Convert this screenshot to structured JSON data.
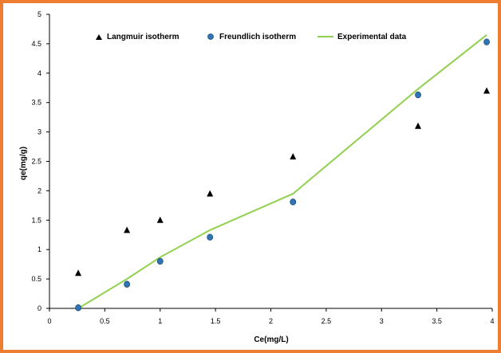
{
  "chart_data": {
    "type": "scatter",
    "title": "",
    "xlabel": "Ce(mg/L)",
    "ylabel": "qe(mg/g)",
    "xlim": [
      0,
      4
    ],
    "ylim": [
      0,
      5
    ],
    "xticks": [
      0,
      0.5,
      1,
      1.5,
      2,
      2.5,
      3,
      3.5,
      4
    ],
    "yticks": [
      0,
      0.5,
      1,
      1.5,
      2,
      2.5,
      3,
      3.5,
      4,
      4.5,
      5
    ],
    "grid": false,
    "legend_position": "top",
    "series": [
      {
        "name": "Langmuir isotherm",
        "kind": "scatter",
        "marker": "triangle",
        "color": "#000000",
        "x": [
          0.26,
          0.7,
          1.0,
          1.45,
          2.2,
          3.33,
          3.95
        ],
        "y": [
          0.6,
          1.33,
          1.5,
          1.95,
          2.58,
          3.1,
          3.7
        ]
      },
      {
        "name": "Freundlich isotherm",
        "kind": "scatter",
        "marker": "circle",
        "color": "#2E75B6",
        "x": [
          0.26,
          0.7,
          1.0,
          1.45,
          2.2,
          3.33,
          3.95
        ],
        "y": [
          0.01,
          0.41,
          0.8,
          1.21,
          1.81,
          3.63,
          4.53
        ]
      },
      {
        "name": "Experimental data",
        "kind": "line",
        "color": "#92D050",
        "x": [
          0.26,
          0.7,
          1.0,
          1.45,
          2.2,
          3.33,
          3.95
        ],
        "y": [
          0,
          0.5,
          0.87,
          1.33,
          1.95,
          3.73,
          4.65
        ]
      }
    ]
  }
}
